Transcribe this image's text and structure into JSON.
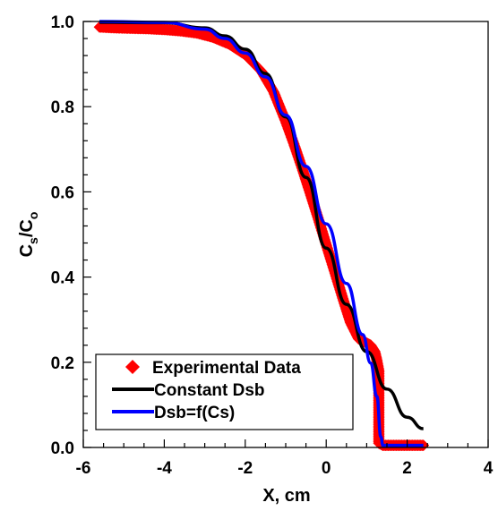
{
  "chart_data": {
    "type": "scatter",
    "xlabel": "X, cm",
    "ylabel": {
      "main": "C",
      "sub1": "s",
      "sep": "/C",
      "sub2": "o"
    },
    "xlim": [
      -6,
      4
    ],
    "ylim": [
      0,
      1.0
    ],
    "x_ticks": [
      "-6",
      "-4",
      "-2",
      "0",
      "2",
      "4"
    ],
    "y_ticks": [
      "0.0",
      "0.2",
      "0.4",
      "0.6",
      "0.8",
      "1.0"
    ],
    "grid": false,
    "legend_position": "bottom-left",
    "series": [
      {
        "name": "Experimental Data",
        "style": "markers",
        "marker": "diamond",
        "color": "#ff0000",
        "points": [
          [
            -5.6,
            0.987
          ],
          [
            -5.2,
            0.985
          ],
          [
            -4.8,
            0.984
          ],
          [
            -4.4,
            0.983
          ],
          [
            -4.0,
            0.981
          ],
          [
            -3.6,
            0.978
          ],
          [
            -3.2,
            0.973
          ],
          [
            -2.8,
            0.963
          ],
          [
            -2.4,
            0.947
          ],
          [
            -2.0,
            0.922
          ],
          [
            -1.6,
            0.883
          ],
          [
            -1.3,
            0.835
          ],
          [
            -1.0,
            0.765
          ],
          [
            -0.8,
            0.713
          ],
          [
            -0.6,
            0.657
          ],
          [
            -0.4,
            0.598
          ],
          [
            -0.2,
            0.538
          ],
          [
            0.0,
            0.476
          ],
          [
            0.2,
            0.415
          ],
          [
            0.4,
            0.353
          ],
          [
            0.6,
            0.293
          ],
          [
            0.8,
            0.255
          ],
          [
            1.0,
            0.245
          ],
          [
            1.1,
            0.24
          ],
          [
            1.2,
            0.225
          ],
          [
            1.25,
            0.205
          ],
          [
            1.3,
            0.18
          ],
          [
            1.3,
            0.01
          ],
          [
            1.4,
            0.005
          ],
          [
            1.6,
            0.005
          ],
          [
            1.8,
            0.005
          ],
          [
            2.0,
            0.005
          ],
          [
            2.2,
            0.005
          ],
          [
            2.4,
            0.005
          ]
        ]
      },
      {
        "name": "Constant Dsb",
        "style": "line",
        "color": "#000000",
        "points": [
          [
            -5.6,
            0.998
          ],
          [
            -4.0,
            0.997
          ],
          [
            -3.0,
            0.985
          ],
          [
            -2.5,
            0.966
          ],
          [
            -2.0,
            0.935
          ],
          [
            -1.5,
            0.878
          ],
          [
            -1.0,
            0.776
          ],
          [
            -0.5,
            0.634
          ],
          [
            0.0,
            0.468
          ],
          [
            0.5,
            0.336
          ],
          [
            1.0,
            0.225
          ],
          [
            1.5,
            0.137
          ],
          [
            2.0,
            0.071
          ],
          [
            2.4,
            0.044
          ]
        ]
      },
      {
        "name": "Dsb=f(Cs)",
        "style": "line",
        "color": "#0000ff",
        "points": [
          [
            -5.6,
            1.0
          ],
          [
            -4.0,
            0.998
          ],
          [
            -3.0,
            0.982
          ],
          [
            -2.5,
            0.96
          ],
          [
            -2.0,
            0.926
          ],
          [
            -1.5,
            0.87
          ],
          [
            -1.0,
            0.78
          ],
          [
            -0.5,
            0.66
          ],
          [
            0.0,
            0.525
          ],
          [
            0.5,
            0.385
          ],
          [
            0.9,
            0.265
          ],
          [
            1.1,
            0.198
          ],
          [
            1.25,
            0.12
          ],
          [
            1.35,
            0.025
          ],
          [
            1.4,
            0.005
          ],
          [
            2.4,
            0.005
          ]
        ]
      }
    ]
  }
}
